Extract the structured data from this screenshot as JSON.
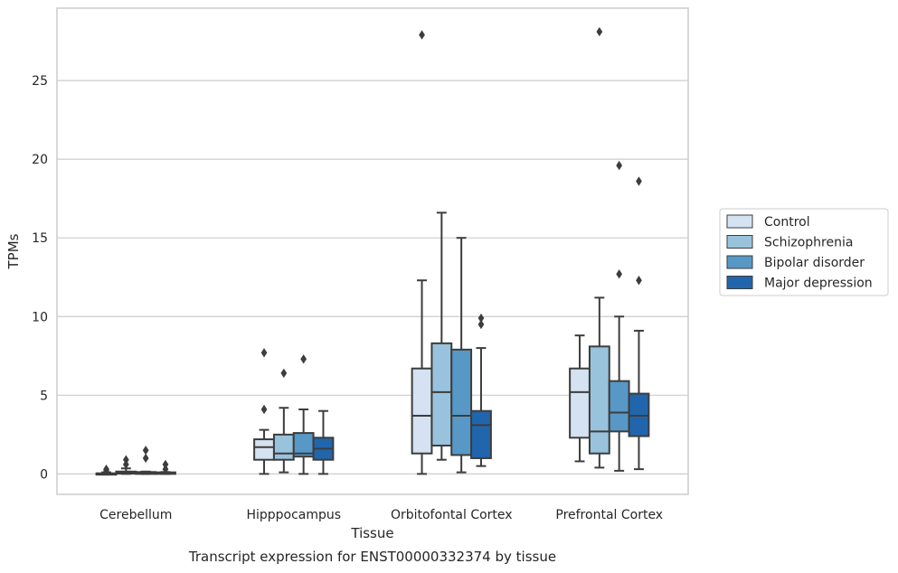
{
  "chart_data": {
    "type": "box",
    "title": "",
    "caption": "Transcript expression for ENST00000332374 by tissue",
    "xlabel": "Tissue",
    "ylabel": "TPMs",
    "ylim": [
      -1.3,
      29.6
    ],
    "yticks": [
      0,
      5,
      10,
      15,
      20,
      25
    ],
    "grid": "horizontal",
    "legend_position": "right",
    "categories": [
      "Cerebellum",
      "Hipppocampus",
      "Orbitofontal Cortex",
      "Prefrontal Cortex"
    ],
    "series": [
      {
        "name": "Control",
        "color": "#d4e2f1",
        "boxes": [
          {
            "whislo": 0.0,
            "q1": 0.0,
            "med": 0.0,
            "q3": 0.04,
            "whishi": 0.1,
            "fliers": [
              0.2,
              0.3
            ]
          },
          {
            "whislo": 0.0,
            "q1": 0.9,
            "med": 1.7,
            "q3": 2.2,
            "whishi": 2.8,
            "fliers": [
              4.1,
              7.7
            ]
          },
          {
            "whislo": 0.0,
            "q1": 1.3,
            "med": 3.7,
            "q3": 6.7,
            "whishi": 12.3,
            "fliers": [
              27.9
            ]
          },
          {
            "whislo": 0.8,
            "q1": 2.3,
            "med": 5.2,
            "q3": 6.7,
            "whishi": 8.8,
            "fliers": []
          }
        ]
      },
      {
        "name": "Schizophrenia",
        "color": "#99c3dc",
        "boxes": [
          {
            "whislo": 0.0,
            "q1": 0.02,
            "med": 0.1,
            "q3": 0.15,
            "whishi": 0.35,
            "fliers": [
              0.6,
              0.9
            ]
          },
          {
            "whislo": 0.1,
            "q1": 0.9,
            "med": 1.3,
            "q3": 2.5,
            "whishi": 4.2,
            "fliers": [
              6.4
            ]
          },
          {
            "whislo": 0.9,
            "q1": 1.8,
            "med": 5.2,
            "q3": 8.3,
            "whishi": 16.6,
            "fliers": []
          },
          {
            "whislo": 0.4,
            "q1": 1.3,
            "med": 2.7,
            "q3": 8.1,
            "whishi": 11.2,
            "fliers": [
              28.1
            ]
          }
        ]
      },
      {
        "name": "Bipolar disorder",
        "color": "#5798c6",
        "boxes": [
          {
            "whislo": 0.0,
            "q1": 0.0,
            "med": 0.05,
            "q3": 0.12,
            "whishi": 0.15,
            "fliers": [
              1.0,
              1.5
            ]
          },
          {
            "whislo": 0.0,
            "q1": 1.1,
            "med": 1.3,
            "q3": 2.6,
            "whishi": 4.1,
            "fliers": [
              7.3
            ]
          },
          {
            "whislo": 0.1,
            "q1": 1.2,
            "med": 3.7,
            "q3": 7.9,
            "whishi": 15.0,
            "fliers": []
          },
          {
            "whislo": 0.2,
            "q1": 2.7,
            "med": 3.9,
            "q3": 5.9,
            "whishi": 10.0,
            "fliers": [
              12.7,
              19.6
            ]
          }
        ]
      },
      {
        "name": "Major depression",
        "color": "#2166ac",
        "boxes": [
          {
            "whislo": 0.0,
            "q1": 0.0,
            "med": 0.05,
            "q3": 0.1,
            "whishi": 0.12,
            "fliers": [
              0.3,
              0.6
            ]
          },
          {
            "whislo": 0.0,
            "q1": 0.9,
            "med": 1.6,
            "q3": 2.3,
            "whishi": 4.0,
            "fliers": []
          },
          {
            "whislo": 0.5,
            "q1": 1.0,
            "med": 3.1,
            "q3": 4.0,
            "whishi": 8.0,
            "fliers": [
              9.5,
              9.9
            ]
          },
          {
            "whislo": 0.3,
            "q1": 2.4,
            "med": 3.7,
            "q3": 5.1,
            "whishi": 9.1,
            "fliers": [
              12.3,
              18.6
            ]
          }
        ]
      }
    ]
  }
}
